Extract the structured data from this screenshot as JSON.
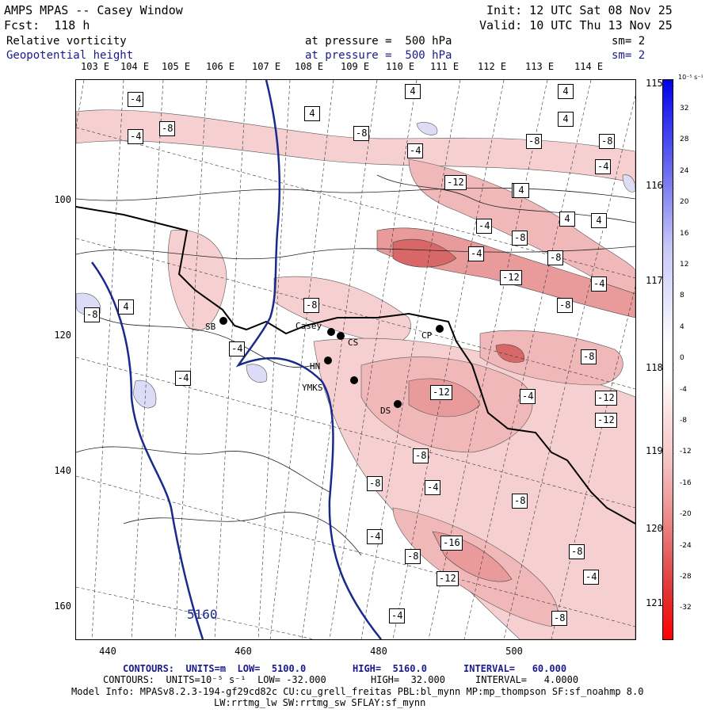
{
  "header": {
    "title": "AMPS MPAS -- Casey Window",
    "forecast": "Fcst:  118 h",
    "init": "Init: 12 UTC Sat 08 Nov 25",
    "valid": "Valid: 10 UTC Thu 13 Nov 25",
    "field1": "Relative vorticity",
    "field2": "Geopotential height",
    "pressure1": "at pressure =  500 hPa",
    "pressure2": "at pressure =  500 hPa",
    "sm1": "sm= 2",
    "sm2": "sm= 2"
  },
  "lon_labels": [
    "103 E",
    "104 E",
    "105 E",
    "106 E",
    "107 E",
    "108 E",
    "109 E",
    "110 E",
    "111 E",
    "112 E",
    "113 E",
    "114 E"
  ],
  "lat_labels": [
    "115 E",
    "116 E",
    "117 E",
    "118 E",
    "119 E",
    "120 E",
    "121 E"
  ],
  "y_ticks": [
    "100",
    "120",
    "140",
    "160"
  ],
  "x_ticks": [
    "440",
    "460",
    "480",
    "500"
  ],
  "stations": [
    {
      "name": "SB"
    },
    {
      "name": "Casey"
    },
    {
      "name": "CS"
    },
    {
      "name": "HN"
    },
    {
      "name": "YMKS"
    },
    {
      "name": "DS"
    },
    {
      "name": "CP"
    }
  ],
  "contour_labels": [
    "-4",
    "-8",
    "-4",
    "-8",
    "-4",
    "4",
    "4",
    "4",
    "4",
    "-4",
    "4",
    "-8",
    "-8",
    "-12",
    "4",
    "4",
    "-4",
    "4",
    "-8",
    "-4",
    "-8",
    "-12",
    "-4",
    "-8",
    "4",
    "-8",
    "-4",
    "-4",
    "-8",
    "-4",
    "-8",
    "-12",
    "-12",
    "-8",
    "-12",
    "-8",
    "-4",
    "-8",
    "-4",
    "-16",
    "-8",
    "-8",
    "-12",
    "-4",
    "-4",
    "-8"
  ],
  "height_label": "5160",
  "colorbar": {
    "unit": "10⁻⁵ s⁻¹",
    "ticks": [
      "32",
      "28",
      "24",
      "20",
      "16",
      "12",
      "8",
      "4",
      "0",
      "-4",
      "-8",
      "-12",
      "-16",
      "-20",
      "-24",
      "-28",
      "-32"
    ]
  },
  "footer": {
    "line1_a": "CONTOURS:  UNITS=m  LOW=  5100.0",
    "line1_b": "HIGH=  5160.0",
    "line1_c": "INTERVAL=   60.000",
    "line2_a": "CONTOURS:  UNITS=10⁻⁵ s⁻¹  LOW= -32.000",
    "line2_b": "HIGH=  32.000",
    "line2_c": "INTERVAL=   4.0000",
    "line3": "Model Info: MPASv8.2.3-194-gf29cd82c CU:cu_grell_freitas PBL:bl_mynn MP:mp_thompson SF:sf_noahmp 8.0",
    "line4": "LW:rrtmg_lw SW:rrtmg_sw SFLAY:sf_mynn"
  }
}
